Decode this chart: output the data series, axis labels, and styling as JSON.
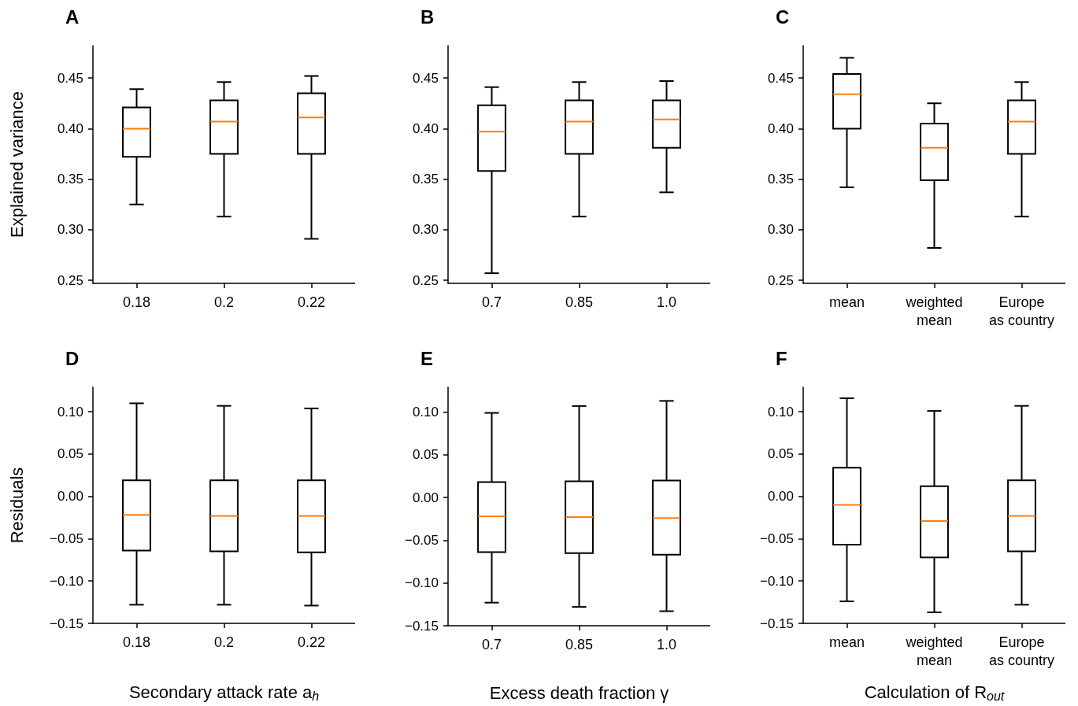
{
  "chart_data": [
    {
      "type": "box",
      "title": "A",
      "ylabel": "Explained variance",
      "categories": [
        "0.18",
        "0.2",
        "0.22"
      ],
      "ylim": [
        0.247,
        0.482
      ],
      "yticks": [
        {
          "value": 0.25,
          "label": "0.25"
        },
        {
          "value": 0.3,
          "label": "0.30"
        },
        {
          "value": 0.35,
          "label": "0.35"
        },
        {
          "value": 0.4,
          "label": "0.40"
        },
        {
          "value": 0.45,
          "label": "0.45"
        }
      ],
      "series": [
        {
          "color": "#000000",
          "boxes": [
            {
              "low": 0.325,
              "q1": 0.372,
              "median": 0.4,
              "q3": 0.421,
              "high": 0.439
            },
            {
              "low": 0.313,
              "q1": 0.375,
              "median": 0.407,
              "q3": 0.428,
              "high": 0.446
            },
            {
              "low": 0.291,
              "q1": 0.375,
              "median": 0.411,
              "q3": 0.435,
              "high": 0.452
            }
          ]
        }
      ]
    },
    {
      "type": "box",
      "title": "B",
      "categories": [
        "0.7",
        "0.85",
        "1.0"
      ],
      "ylim": [
        0.247,
        0.482
      ],
      "yticks": [
        {
          "value": 0.25,
          "label": "0.25"
        },
        {
          "value": 0.3,
          "label": "0.30"
        },
        {
          "value": 0.35,
          "label": "0.35"
        },
        {
          "value": 0.4,
          "label": "0.40"
        },
        {
          "value": 0.45,
          "label": "0.45"
        }
      ],
      "series": [
        {
          "color": "#000000",
          "boxes": [
            {
              "low": 0.257,
              "q1": 0.358,
              "median": 0.397,
              "q3": 0.423,
              "high": 0.441
            },
            {
              "low": 0.313,
              "q1": 0.375,
              "median": 0.407,
              "q3": 0.428,
              "high": 0.446
            },
            {
              "low": 0.337,
              "q1": 0.381,
              "median": 0.409,
              "q3": 0.428,
              "high": 0.447
            }
          ]
        }
      ]
    },
    {
      "type": "box",
      "title": "C",
      "categories": [
        "mean",
        "weighted\nmean",
        "Europe\nas country"
      ],
      "ylim": [
        0.247,
        0.482
      ],
      "yticks": [
        {
          "value": 0.25,
          "label": "0.25"
        },
        {
          "value": 0.3,
          "label": "0.30"
        },
        {
          "value": 0.35,
          "label": "0.35"
        },
        {
          "value": 0.4,
          "label": "0.40"
        },
        {
          "value": 0.45,
          "label": "0.45"
        }
      ],
      "series": [
        {
          "color": "#000000",
          "boxes": [
            {
              "low": 0.342,
              "q1": 0.4,
              "median": 0.434,
              "q3": 0.454,
              "high": 0.47
            },
            {
              "low": 0.282,
              "q1": 0.349,
              "median": 0.381,
              "q3": 0.405,
              "high": 0.425
            },
            {
              "low": 0.313,
              "q1": 0.375,
              "median": 0.407,
              "q3": 0.428,
              "high": 0.446
            }
          ]
        }
      ]
    },
    {
      "type": "box",
      "title": "D",
      "ylabel": "Residuals",
      "xlabel": "Secondary attack rate a$_{h}$",
      "categories": [
        "0.18",
        "0.2",
        "0.22"
      ],
      "ylim": [
        -0.15,
        0.129
      ],
      "yticks": [
        {
          "value": -0.15,
          "label": "−0.15"
        },
        {
          "value": -0.1,
          "label": "−0.10"
        },
        {
          "value": -0.05,
          "label": "−0.05"
        },
        {
          "value": 0,
          "label": "0.00"
        },
        {
          "value": 0.05,
          "label": "0.05"
        },
        {
          "value": 0.1,
          "label": "0.10"
        }
      ],
      "series": [
        {
          "color": "#000000",
          "boxes": [
            {
              "low": -0.128,
              "q1": -0.064,
              "median": -0.022,
              "q3": 0.019,
              "high": 0.11
            },
            {
              "low": -0.128,
              "q1": -0.065,
              "median": -0.023,
              "q3": 0.019,
              "high": 0.107
            },
            {
              "low": -0.129,
              "q1": -0.066,
              "median": -0.023,
              "q3": 0.019,
              "high": 0.104
            }
          ]
        }
      ]
    },
    {
      "type": "box",
      "title": "E",
      "xlabel": "Excess death fraction γ",
      "categories": [
        "0.7",
        "0.85",
        "1.0"
      ],
      "ylim": [
        -0.15,
        0.129
      ],
      "yticks": [
        {
          "value": -0.15,
          "label": "−0.15"
        },
        {
          "value": -0.1,
          "label": "−0.10"
        },
        {
          "value": -0.05,
          "label": "−0.05"
        },
        {
          "value": 0,
          "label": "0.00"
        },
        {
          "value": 0.05,
          "label": "0.05"
        },
        {
          "value": 0.1,
          "label": "0.10"
        }
      ],
      "series": [
        {
          "color": "#000000",
          "boxes": [
            {
              "low": -0.123,
              "q1": -0.064,
              "median": -0.022,
              "q3": 0.018,
              "high": 0.099
            },
            {
              "low": -0.128,
              "q1": -0.065,
              "median": -0.023,
              "q3": 0.019,
              "high": 0.107
            },
            {
              "low": -0.133,
              "q1": -0.067,
              "median": -0.024,
              "q3": 0.02,
              "high": 0.113
            }
          ]
        }
      ]
    },
    {
      "type": "box",
      "title": "F",
      "xlabel": "Calculation of R$_{out}$",
      "categories": [
        "mean",
        "weighted\nmean",
        "Europe\nas country"
      ],
      "ylim": [
        -0.15,
        0.129
      ],
      "yticks": [
        {
          "value": -0.15,
          "label": "−0.15"
        },
        {
          "value": -0.1,
          "label": "−0.10"
        },
        {
          "value": -0.05,
          "label": "−0.05"
        },
        {
          "value": 0,
          "label": "0.00"
        },
        {
          "value": 0.05,
          "label": "0.05"
        },
        {
          "value": 0.1,
          "label": "0.10"
        }
      ],
      "series": [
        {
          "color": "#000000",
          "boxes": [
            {
              "low": -0.124,
              "q1": -0.057,
              "median": -0.01,
              "q3": 0.034,
              "high": 0.116
            },
            {
              "low": -0.137,
              "q1": -0.072,
              "median": -0.029,
              "q3": 0.012,
              "high": 0.101
            },
            {
              "low": -0.128,
              "q1": -0.065,
              "median": -0.023,
              "q3": 0.019,
              "high": 0.107
            }
          ]
        }
      ]
    }
  ]
}
